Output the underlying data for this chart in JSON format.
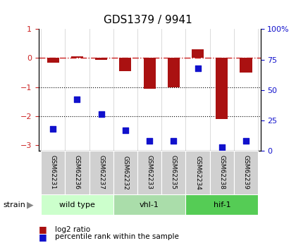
{
  "title": "GDS1379 / 9941",
  "samples": [
    "GSM62231",
    "GSM62236",
    "GSM62237",
    "GSM62232",
    "GSM62233",
    "GSM62235",
    "GSM62234",
    "GSM62238",
    "GSM62239"
  ],
  "log2_ratio": [
    -0.15,
    0.07,
    -0.05,
    -0.45,
    -1.05,
    -1.0,
    0.3,
    -2.1,
    -0.5
  ],
  "percentile_rank": [
    18,
    42,
    30,
    17,
    8,
    8,
    68,
    3,
    8
  ],
  "groups": [
    {
      "label": "wild type",
      "indices": [
        0,
        1,
        2
      ],
      "color": "#ccffcc"
    },
    {
      "label": "vhl-1",
      "indices": [
        3,
        4,
        5
      ],
      "color": "#aaddaa"
    },
    {
      "label": "hif-1",
      "indices": [
        6,
        7,
        8
      ],
      "color": "#55cc55"
    }
  ],
  "ylim_left": [
    -3.2,
    1.0
  ],
  "ylim_right": [
    0,
    100
  ],
  "bar_color": "#aa1111",
  "dot_color": "#1111cc",
  "dash_color": "#cc2222",
  "legend_items": [
    "log2 ratio",
    "percentile rank within the sample"
  ],
  "grid_yticks_left": [
    -3,
    -2,
    -1,
    0,
    1
  ],
  "grid_yticks_right": [
    0,
    25,
    50,
    75,
    100
  ]
}
